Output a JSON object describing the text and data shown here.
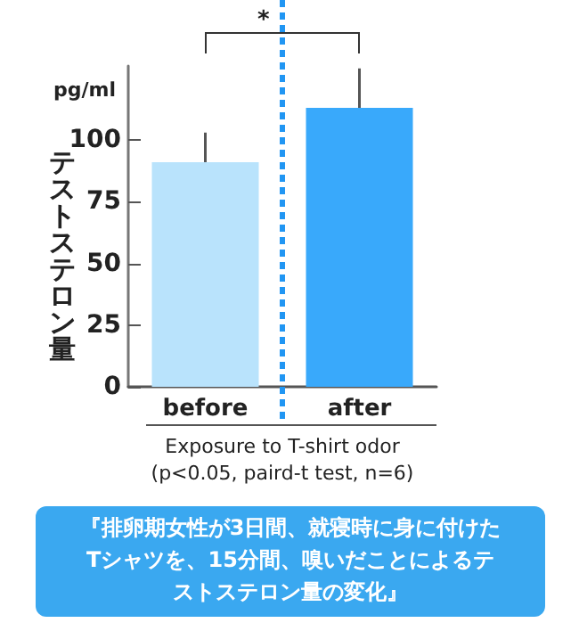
{
  "chart_data": {
    "type": "bar",
    "ylabel": "テストステロン量",
    "xlabel": "Exposure to T-shirt odor\n(p<0.05, paird-t test, n=6)",
    "categories": [
      "before",
      "after"
    ],
    "values": [
      91,
      113
    ],
    "colors": [
      "#b9e3fc",
      "#39a9fb"
    ],
    "errors": [
      [
        91,
        103
      ],
      [
        113,
        129
      ]
    ],
    "ylim": [
      0,
      130
    ],
    "yticks": [
      0,
      25,
      50,
      75,
      100
    ],
    "grid": false,
    "annotations": [
      "pg/ml",
      "*",
      "『排卵期女性が3日間、就寝時に身に付けたTシャツを、15分間、嗅いだことによるテストステロン量の変化』"
    ]
  }
}
